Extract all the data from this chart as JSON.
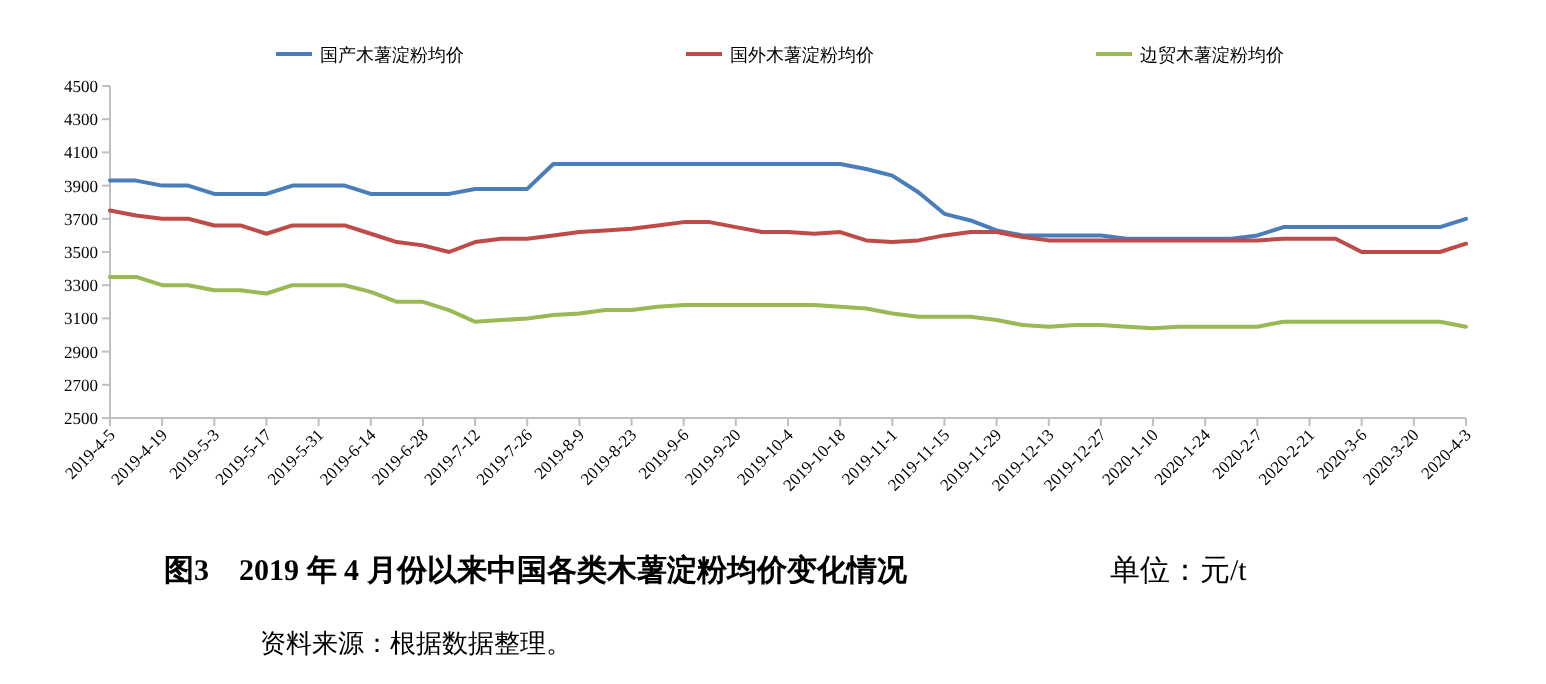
{
  "chart_data": {
    "type": "line",
    "title": "图3　2019 年 4 月份以来中国各类木薯淀粉均价变化情况",
    "annotations": [
      "单位：元/t",
      "资料来源：根据数据整理。"
    ],
    "categories": [
      "2019-4-5",
      null,
      "2019-4-19",
      null,
      "2019-5-3",
      null,
      "2019-5-17",
      null,
      "2019-5-31",
      null,
      "2019-6-14",
      null,
      "2019-6-28",
      null,
      "2019-7-12",
      null,
      "2019-7-26",
      null,
      "2019-8-9",
      null,
      "2019-8-23",
      null,
      "2019-9-6",
      null,
      "2019-9-20",
      null,
      "2019-10-4",
      null,
      "2019-10-18",
      null,
      "2019-11-1",
      null,
      "2019-11-15",
      null,
      "2019-11-29",
      null,
      "2019-12-13",
      null,
      "2019-12-27",
      null,
      "2020-1-10",
      null,
      "2020-1-24",
      null,
      "2020-2-7",
      null,
      "2020-2-21",
      null,
      "2020-3-6",
      null,
      "2020-3-20",
      null,
      "2020-4-3"
    ],
    "series": [
      {
        "name": "国产木薯淀粉均价",
        "color": "#4a7ebb",
        "values": [
          3930,
          3930,
          3900,
          3900,
          3850,
          3850,
          3850,
          3900,
          3900,
          3900,
          3850,
          3850,
          3850,
          3850,
          3880,
          3880,
          3880,
          4030,
          4030,
          4030,
          4030,
          4030,
          4030,
          4030,
          4030,
          4030,
          4030,
          4030,
          4030,
          4000,
          3960,
          3860,
          3730,
          3690,
          3630,
          3600,
          3600,
          3600,
          3600,
          3580,
          3580,
          3580,
          3580,
          3580,
          3600,
          3650,
          3650,
          3650,
          3650,
          3650,
          3650,
          3650,
          3700
        ]
      },
      {
        "name": "国外木薯淀粉均价",
        "color": "#be4b48",
        "values": [
          3750,
          3720,
          3700,
          3700,
          3660,
          3660,
          3610,
          3660,
          3660,
          3660,
          3610,
          3560,
          3540,
          3500,
          3560,
          3580,
          3580,
          3600,
          3620,
          3630,
          3640,
          3660,
          3680,
          3680,
          3650,
          3620,
          3620,
          3610,
          3620,
          3570,
          3560,
          3570,
          3600,
          3620,
          3620,
          3590,
          3570,
          3570,
          3570,
          3570,
          3570,
          3570,
          3570,
          3570,
          3570,
          3580,
          3580,
          3580,
          3500,
          3500,
          3500,
          3500,
          3550
        ]
      },
      {
        "name": "边贸木薯淀粉均价",
        "color": "#98b954",
        "values": [
          3350,
          3350,
          3300,
          3300,
          3270,
          3270,
          3250,
          3300,
          3300,
          3300,
          3260,
          3200,
          3200,
          3150,
          3080,
          3090,
          3100,
          3120,
          3130,
          3150,
          3150,
          3170,
          3180,
          3180,
          3180,
          3180,
          3180,
          3180,
          3170,
          3160,
          3130,
          3110,
          3110,
          3110,
          3090,
          3060,
          3050,
          3060,
          3060,
          3050,
          3040,
          3050,
          3050,
          3050,
          3050,
          3080,
          3080,
          3080,
          3080,
          3080,
          3080,
          3080,
          3050
        ]
      }
    ],
    "ylim": [
      2500,
      4500
    ],
    "yticks": [
      2500,
      2700,
      2900,
      3100,
      3300,
      3500,
      3700,
      3900,
      4100,
      4300,
      4500
    ],
    "legend": "top",
    "grid": false,
    "marker": "none",
    "line_style": "solid"
  }
}
